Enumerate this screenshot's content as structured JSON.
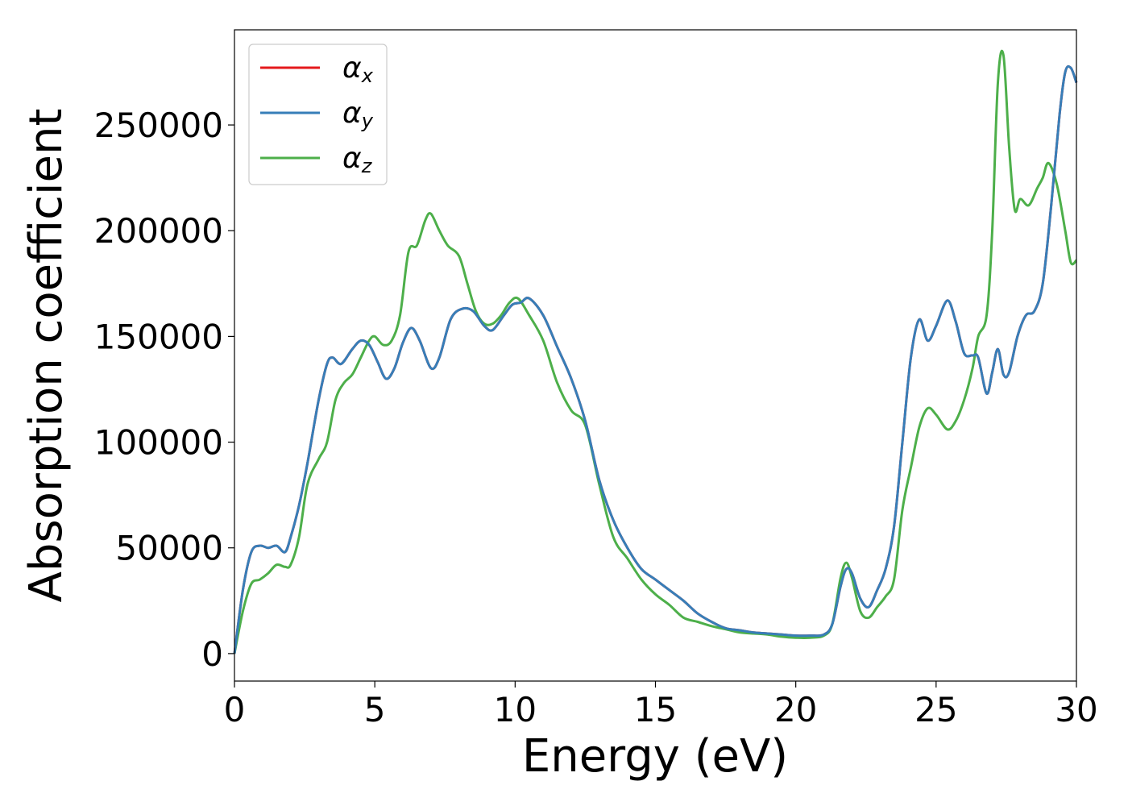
{
  "chart_data": {
    "type": "line",
    "title": "",
    "xlabel": "Energy (eV)",
    "ylabel": "Absorption coefficient",
    "xlim": [
      0,
      30
    ],
    "ylim": [
      -13000,
      295000
    ],
    "xticks": [
      0,
      5,
      10,
      15,
      20,
      25,
      30
    ],
    "yticks": [
      0,
      50000,
      100000,
      150000,
      200000,
      250000
    ],
    "grid": false,
    "legend_position": "top-left",
    "series": [
      {
        "name": "αx",
        "legend_base": "α",
        "legend_sub": "x",
        "color": "#e41a1c",
        "x": [
          0,
          0.3,
          0.6,
          0.9,
          1.2,
          1.5,
          1.8,
          2.0,
          2.3,
          2.6,
          3.0,
          3.3,
          3.5,
          3.8,
          4.2,
          4.5,
          4.8,
          5.1,
          5.4,
          5.7,
          6.0,
          6.3,
          6.6,
          7.0,
          7.3,
          7.7,
          8.1,
          8.5,
          8.9,
          9.2,
          9.6,
          9.9,
          10.2,
          10.5,
          11.0,
          11.5,
          12.0,
          12.5,
          13.0,
          13.5,
          14.0,
          14.5,
          15.0,
          15.5,
          16.0,
          16.5,
          17.0,
          17.5,
          18.0,
          18.5,
          19.0,
          19.5,
          20.0,
          20.5,
          21.0,
          21.3,
          21.6,
          21.8,
          22.0,
          22.3,
          22.6,
          22.9,
          23.2,
          23.5,
          23.8,
          24.1,
          24.4,
          24.7,
          25.0,
          25.4,
          25.7,
          26.0,
          26.3,
          26.5,
          26.8,
          27.0,
          27.2,
          27.4,
          27.6,
          27.9,
          28.2,
          28.5,
          28.8,
          29.1,
          29.4,
          29.6,
          29.8,
          30.0
        ],
        "values": [
          0,
          30000,
          48000,
          51000,
          50000,
          51000,
          48000,
          55000,
          70000,
          90000,
          120000,
          137000,
          140000,
          137000,
          144000,
          148000,
          146000,
          138000,
          130000,
          135000,
          147000,
          154000,
          148000,
          135000,
          140000,
          158000,
          163000,
          162000,
          155000,
          153000,
          160000,
          165000,
          166000,
          168000,
          160000,
          145000,
          130000,
          110000,
          82000,
          63000,
          50000,
          40000,
          35000,
          30000,
          25000,
          19000,
          15000,
          12000,
          11000,
          10000,
          9500,
          9000,
          8500,
          8500,
          9000,
          14000,
          32000,
          40000,
          38000,
          26000,
          22000,
          30000,
          40000,
          60000,
          100000,
          140000,
          158000,
          148000,
          155000,
          167000,
          157000,
          142000,
          141000,
          140000,
          123000,
          133000,
          144000,
          132000,
          133000,
          150000,
          160000,
          162000,
          175000,
          212000,
          255000,
          275000,
          277000,
          270000
        ]
      },
      {
        "name": "αy",
        "legend_base": "α",
        "legend_sub": "y",
        "color": "#377eb8",
        "x": [
          0,
          0.3,
          0.6,
          0.9,
          1.2,
          1.5,
          1.8,
          2.0,
          2.3,
          2.6,
          3.0,
          3.3,
          3.5,
          3.8,
          4.2,
          4.5,
          4.8,
          5.1,
          5.4,
          5.7,
          6.0,
          6.3,
          6.6,
          7.0,
          7.3,
          7.7,
          8.1,
          8.5,
          8.9,
          9.2,
          9.6,
          9.9,
          10.2,
          10.5,
          11.0,
          11.5,
          12.0,
          12.5,
          13.0,
          13.5,
          14.0,
          14.5,
          15.0,
          15.5,
          16.0,
          16.5,
          17.0,
          17.5,
          18.0,
          18.5,
          19.0,
          19.5,
          20.0,
          20.5,
          21.0,
          21.3,
          21.6,
          21.8,
          22.0,
          22.3,
          22.6,
          22.9,
          23.2,
          23.5,
          23.8,
          24.1,
          24.4,
          24.7,
          25.0,
          25.4,
          25.7,
          26.0,
          26.3,
          26.5,
          26.8,
          27.0,
          27.2,
          27.4,
          27.6,
          27.9,
          28.2,
          28.5,
          28.8,
          29.1,
          29.4,
          29.6,
          29.8,
          30.0
        ],
        "values": [
          0,
          30000,
          48000,
          51000,
          50000,
          51000,
          48000,
          55000,
          70000,
          90000,
          120000,
          137000,
          140000,
          137000,
          144000,
          148000,
          146000,
          138000,
          130000,
          135000,
          147000,
          154000,
          148000,
          135000,
          140000,
          158000,
          163000,
          162000,
          155000,
          153000,
          160000,
          165000,
          166000,
          168000,
          160000,
          145000,
          130000,
          110000,
          82000,
          63000,
          50000,
          40000,
          35000,
          30000,
          25000,
          19000,
          15000,
          12000,
          11000,
          10000,
          9500,
          9000,
          8500,
          8500,
          9000,
          14000,
          32000,
          40000,
          38000,
          26000,
          22000,
          30000,
          40000,
          60000,
          100000,
          140000,
          158000,
          148000,
          155000,
          167000,
          157000,
          142000,
          141000,
          140000,
          123000,
          133000,
          144000,
          132000,
          133000,
          150000,
          160000,
          162000,
          175000,
          212000,
          255000,
          275000,
          277000,
          270000
        ]
      },
      {
        "name": "αz",
        "legend_base": "α",
        "legend_sub": "z",
        "color": "#4daf4a",
        "x": [
          0,
          0.3,
          0.6,
          0.9,
          1.2,
          1.5,
          1.8,
          2.0,
          2.3,
          2.6,
          3.0,
          3.3,
          3.6,
          3.9,
          4.2,
          4.5,
          4.8,
          5.0,
          5.3,
          5.6,
          5.9,
          6.2,
          6.5,
          6.8,
          7.0,
          7.3,
          7.6,
          8.0,
          8.3,
          8.6,
          8.9,
          9.2,
          9.5,
          9.8,
          10.1,
          10.5,
          11.0,
          11.5,
          12.0,
          12.5,
          13.0,
          13.5,
          14.0,
          14.5,
          15.0,
          15.5,
          16.0,
          16.5,
          17.0,
          17.5,
          18.0,
          18.5,
          19.0,
          19.5,
          20.0,
          20.5,
          21.0,
          21.3,
          21.6,
          21.8,
          22.0,
          22.3,
          22.6,
          22.9,
          23.2,
          23.5,
          23.8,
          24.1,
          24.4,
          24.7,
          25.0,
          25.4,
          25.7,
          26.0,
          26.3,
          26.5,
          26.8,
          27.0,
          27.2,
          27.4,
          27.6,
          27.8,
          28.0,
          28.3,
          28.6,
          28.8,
          29.0,
          29.3,
          29.6,
          29.8,
          30.0
        ],
        "values": [
          0,
          20000,
          33000,
          35000,
          38000,
          42000,
          41000,
          42000,
          55000,
          80000,
          92000,
          100000,
          120000,
          128000,
          132000,
          140000,
          148000,
          150000,
          146000,
          148000,
          160000,
          190000,
          193000,
          205000,
          208000,
          200000,
          193000,
          188000,
          175000,
          162000,
          156000,
          156000,
          160000,
          166000,
          168000,
          160000,
          148000,
          128000,
          115000,
          108000,
          80000,
          55000,
          45000,
          35000,
          28000,
          23000,
          17000,
          15000,
          13000,
          11500,
          10000,
          9500,
          9000,
          8000,
          7500,
          7500,
          8500,
          14000,
          36000,
          43000,
          36000,
          20000,
          17000,
          22000,
          27000,
          35000,
          68000,
          88000,
          107000,
          116000,
          113000,
          106000,
          110000,
          120000,
          135000,
          150000,
          160000,
          200000,
          270000,
          283000,
          240000,
          210000,
          215000,
          212000,
          220000,
          225000,
          232000,
          222000,
          200000,
          185000,
          186000
        ]
      }
    ]
  }
}
